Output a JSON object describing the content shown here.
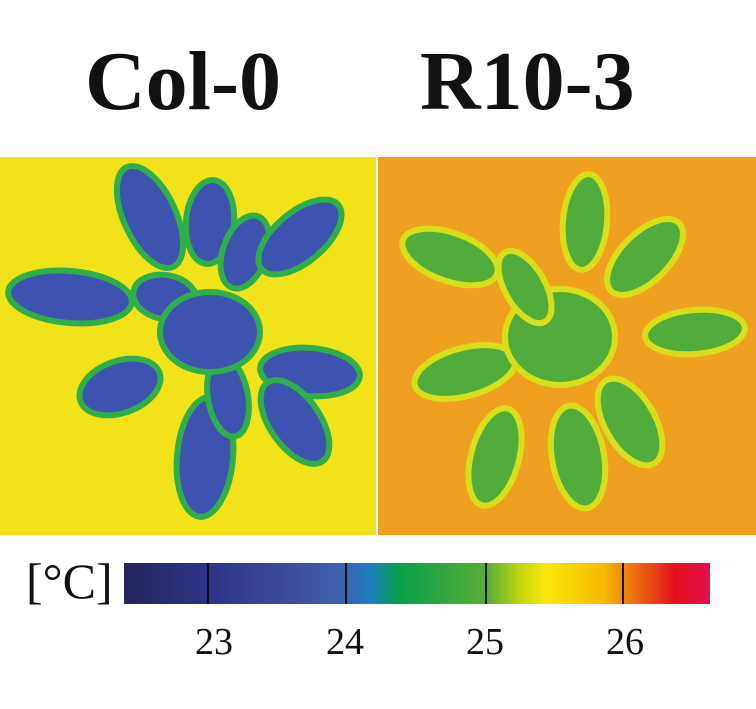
{
  "panels": [
    {
      "label": "Col-0",
      "background": "#f2e21a",
      "leaf_color": "#3e52b0",
      "leaf_edge": "#2fae4a"
    },
    {
      "label": "R10-3",
      "background": "#f0a020",
      "leaf_color": "#52ac3c",
      "leaf_edge": "#d8de1c"
    }
  ],
  "colorbar": {
    "unit": "[°C]",
    "ticks": [
      "23",
      "24",
      "25",
      "26"
    ],
    "colors": [
      "#232659",
      "#4050a0",
      "#1f7ec2",
      "#08a04a",
      "#c9d90e",
      "#fbe80a",
      "#ec7010",
      "#e4101e"
    ]
  }
}
